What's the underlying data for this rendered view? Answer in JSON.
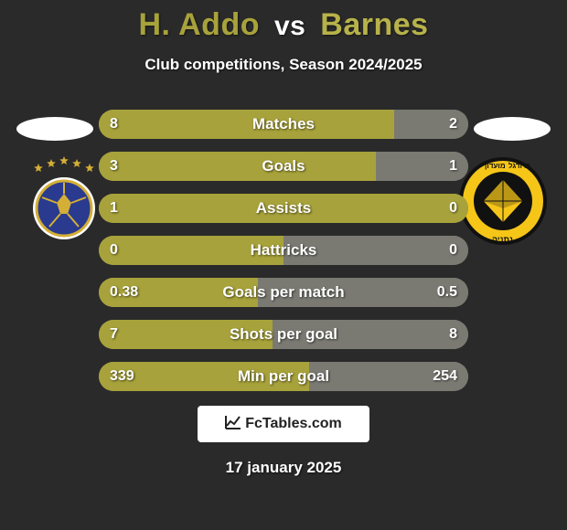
{
  "title_player1": "H. Addo",
  "title_vs": "vs",
  "title_player2": "Barnes",
  "subtitle": "Club competitions, Season 2024/2025",
  "colors": {
    "player1": "#a7a23b",
    "player2": "#7a7a73",
    "title_p1": "#a7a23b",
    "title_p2": "#b7b24a",
    "bg": "#2a2a2a"
  },
  "bars": [
    {
      "label": "Matches",
      "left": "8",
      "right": "2",
      "left_pct": 80,
      "right_pct": 20
    },
    {
      "label": "Goals",
      "left": "3",
      "right": "1",
      "left_pct": 75,
      "right_pct": 25
    },
    {
      "label": "Assists",
      "left": "1",
      "right": "0",
      "left_pct": 100,
      "right_pct": 0
    },
    {
      "label": "Hattricks",
      "left": "0",
      "right": "0",
      "left_pct": 50,
      "right_pct": 50
    },
    {
      "label": "Goals per match",
      "left": "0.38",
      "right": "0.5",
      "left_pct": 43,
      "right_pct": 57
    },
    {
      "label": "Shots per goal",
      "left": "7",
      "right": "8",
      "left_pct": 47,
      "right_pct": 53
    },
    {
      "label": "Min per goal",
      "left": "339",
      "right": "254",
      "left_pct": 57,
      "right_pct": 43
    }
  ],
  "club_left": {
    "stars": 5,
    "star_color": "#d4af37",
    "ball_fill": "#2a3a8f",
    "ball_stroke": "#d4af37"
  },
  "club_right": {
    "top_text": "מועדון",
    "top_text2": "כדורגל",
    "ring_fill": "#f5c518",
    "diamond_fill": "#111111",
    "bottom_text": "נתניה"
  },
  "footer_brand_icon": "📈",
  "footer_brand_text": "FcTables.com",
  "footer_date": "17 january 2025"
}
